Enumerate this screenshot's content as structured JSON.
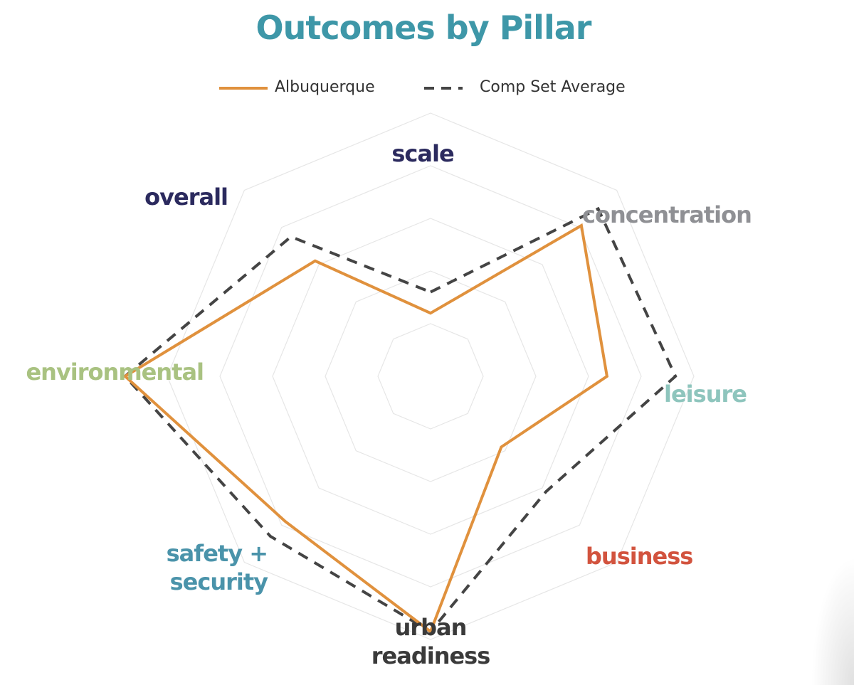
{
  "chart_data": {
    "type": "radar",
    "title": "Outcomes by Pillar",
    "categories": [
      {
        "label": "scale",
        "color": "#2b2a5e"
      },
      {
        "label": "concentration",
        "color": "#8f9094"
      },
      {
        "label": "leisure",
        "color": "#8ec5bd"
      },
      {
        "label": "business",
        "color": "#d2533e"
      },
      {
        "label": "urban\nreadiness",
        "color": "#3a3a3a"
      },
      {
        "label": "safety +\nsecurity",
        "color": "#4a93aa"
      },
      {
        "label": "environmental",
        "color": "#a9c281"
      },
      {
        "label": "overall",
        "color": "#2b2a5e"
      }
    ],
    "rlim": [
      0,
      5
    ],
    "series": [
      {
        "name": "Albuquerque",
        "color": "#e0913d",
        "style": "solid",
        "values": [
          1.2,
          4.05,
          3.35,
          1.9,
          4.85,
          3.9,
          5.8,
          3.1
        ]
      },
      {
        "name": "Comp Set Average",
        "color": "#444444",
        "style": "dashed",
        "values": [
          1.6,
          4.5,
          4.65,
          3.1,
          4.85,
          4.3,
          5.8,
          3.75
        ]
      }
    ],
    "grid": true,
    "legend_position": "top"
  }
}
